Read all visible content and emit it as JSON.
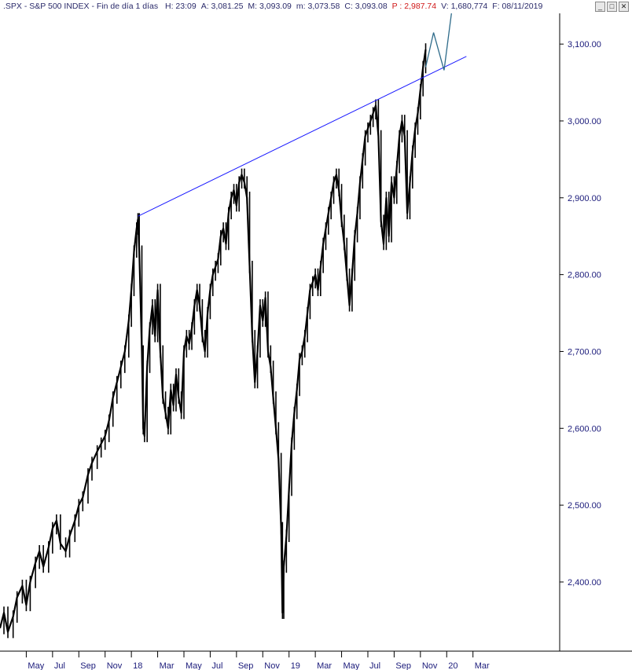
{
  "header": {
    "symbol": ".SPX - S&P 500 INDEX - Fin de día 1 días",
    "fields": [
      {
        "label": "H:",
        "value": "23:09"
      },
      {
        "label": "A:",
        "value": "3,081.25"
      },
      {
        "label": "M:",
        "value": "3,093.09"
      },
      {
        "label": "m:",
        "value": "3,073.58"
      },
      {
        "label": "C:",
        "value": "3,093.08"
      },
      {
        "label": "P :",
        "value": "2,987.74",
        "color": "#d01818"
      },
      {
        "label": "V:",
        "value": "1,680,774"
      },
      {
        "label": "F:",
        "value": "08/11/2019"
      }
    ],
    "buttons": [
      "_",
      "□",
      "✕"
    ]
  },
  "colors": {
    "price": "#000000",
    "trendline": "#1a1aff",
    "projection": "#2e6b8a",
    "axis_text": "#1a1a7a"
  },
  "chart_data": {
    "type": "line",
    "ylim": [
      2310,
      3140
    ],
    "yticks": [
      2400,
      2500,
      2600,
      2700,
      2800,
      2900,
      3000,
      3100
    ],
    "ytick_labels": [
      "2,400.00",
      "2,500.00",
      "2,600.00",
      "2,700.00",
      "2,800.00",
      "2,900.00",
      "3,000.00",
      "3,100.00"
    ],
    "xlim": [
      0,
      42.6
    ],
    "xticks": [
      {
        "label": "May",
        "x": 2
      },
      {
        "label": "Jul",
        "x": 4
      },
      {
        "label": "Sep",
        "x": 6
      },
      {
        "label": "Nov",
        "x": 8
      },
      {
        "label": "18",
        "x": 10
      },
      {
        "label": "Mar",
        "x": 12
      },
      {
        "label": "May",
        "x": 14
      },
      {
        "label": "Jul",
        "x": 16
      },
      {
        "label": "Sep",
        "x": 18
      },
      {
        "label": "Nov",
        "x": 20
      },
      {
        "label": "19",
        "x": 22
      },
      {
        "label": "Mar",
        "x": 24
      },
      {
        "label": "May",
        "x": 26
      },
      {
        "label": "Jul",
        "x": 28
      },
      {
        "label": "Sep",
        "x": 30
      },
      {
        "label": "Nov",
        "x": 32
      },
      {
        "label": "20",
        "x": 34
      },
      {
        "label": "Mar",
        "x": 36
      }
    ],
    "series": [
      {
        "points": [
          [
            0.0,
            2340
          ],
          [
            0.3,
            2360
          ],
          [
            0.6,
            2335
          ],
          [
            1.0,
            2355
          ],
          [
            1.3,
            2380
          ],
          [
            1.7,
            2395
          ],
          [
            2.0,
            2370
          ],
          [
            2.3,
            2400
          ],
          [
            2.7,
            2425
          ],
          [
            3.0,
            2440
          ],
          [
            3.3,
            2420
          ],
          [
            3.7,
            2445
          ],
          [
            4.0,
            2470
          ],
          [
            4.3,
            2480
          ],
          [
            4.6,
            2450
          ],
          [
            5.0,
            2440
          ],
          [
            5.3,
            2460
          ],
          [
            5.7,
            2480
          ],
          [
            6.0,
            2500
          ],
          [
            6.3,
            2510
          ],
          [
            6.7,
            2540
          ],
          [
            7.0,
            2555
          ],
          [
            7.4,
            2570
          ],
          [
            7.7,
            2580
          ],
          [
            8.0,
            2590
          ],
          [
            8.3,
            2610
          ],
          [
            8.6,
            2640
          ],
          [
            8.9,
            2660
          ],
          [
            9.2,
            2680
          ],
          [
            9.5,
            2700
          ],
          [
            9.8,
            2740
          ],
          [
            10.0,
            2780
          ],
          [
            10.2,
            2830
          ],
          [
            10.4,
            2860
          ],
          [
            10.5,
            2872
          ],
          [
            10.6,
            2830
          ],
          [
            10.8,
            2700
          ],
          [
            10.9,
            2600
          ],
          [
            11.0,
            2590
          ],
          [
            11.2,
            2680
          ],
          [
            11.4,
            2730
          ],
          [
            11.6,
            2760
          ],
          [
            11.8,
            2720
          ],
          [
            12.0,
            2780
          ],
          [
            12.2,
            2700
          ],
          [
            12.4,
            2640
          ],
          [
            12.6,
            2620
          ],
          [
            12.8,
            2600
          ],
          [
            13.0,
            2650
          ],
          [
            13.2,
            2630
          ],
          [
            13.4,
            2670
          ],
          [
            13.6,
            2640
          ],
          [
            13.8,
            2620
          ],
          [
            14.0,
            2700
          ],
          [
            14.2,
            2720
          ],
          [
            14.4,
            2710
          ],
          [
            14.6,
            2730
          ],
          [
            14.8,
            2760
          ],
          [
            15.0,
            2780
          ],
          [
            15.2,
            2760
          ],
          [
            15.4,
            2720
          ],
          [
            15.6,
            2700
          ],
          [
            15.8,
            2750
          ],
          [
            16.0,
            2780
          ],
          [
            16.2,
            2800
          ],
          [
            16.4,
            2810
          ],
          [
            16.6,
            2820
          ],
          [
            16.8,
            2850
          ],
          [
            17.0,
            2860
          ],
          [
            17.2,
            2840
          ],
          [
            17.4,
            2880
          ],
          [
            17.6,
            2900
          ],
          [
            17.8,
            2910
          ],
          [
            18.0,
            2890
          ],
          [
            18.2,
            2920
          ],
          [
            18.4,
            2930
          ],
          [
            18.6,
            2920
          ],
          [
            18.8,
            2900
          ],
          [
            19.0,
            2810
          ],
          [
            19.2,
            2720
          ],
          [
            19.4,
            2660
          ],
          [
            19.6,
            2700
          ],
          [
            19.8,
            2760
          ],
          [
            20.0,
            2740
          ],
          [
            20.2,
            2770
          ],
          [
            20.4,
            2700
          ],
          [
            20.6,
            2680
          ],
          [
            20.8,
            2640
          ],
          [
            21.0,
            2600
          ],
          [
            21.2,
            2560
          ],
          [
            21.4,
            2470
          ],
          [
            21.5,
            2360
          ],
          [
            21.6,
            2420
          ],
          [
            21.8,
            2460
          ],
          [
            22.0,
            2520
          ],
          [
            22.2,
            2580
          ],
          [
            22.4,
            2620
          ],
          [
            22.6,
            2650
          ],
          [
            22.8,
            2690
          ],
          [
            23.0,
            2700
          ],
          [
            23.2,
            2720
          ],
          [
            23.4,
            2750
          ],
          [
            23.6,
            2780
          ],
          [
            23.8,
            2790
          ],
          [
            24.0,
            2800
          ],
          [
            24.2,
            2780
          ],
          [
            24.4,
            2810
          ],
          [
            24.6,
            2840
          ],
          [
            24.8,
            2860
          ],
          [
            25.0,
            2880
          ],
          [
            25.2,
            2900
          ],
          [
            25.4,
            2920
          ],
          [
            25.6,
            2930
          ],
          [
            25.8,
            2910
          ],
          [
            26.0,
            2870
          ],
          [
            26.2,
            2840
          ],
          [
            26.4,
            2800
          ],
          [
            26.6,
            2760
          ],
          [
            26.8,
            2800
          ],
          [
            27.0,
            2850
          ],
          [
            27.2,
            2880
          ],
          [
            27.4,
            2920
          ],
          [
            27.6,
            2950
          ],
          [
            27.8,
            2980
          ],
          [
            28.0,
            2990
          ],
          [
            28.2,
            3000
          ],
          [
            28.4,
            3010
          ],
          [
            28.6,
            3020
          ],
          [
            28.8,
            2980
          ],
          [
            29.0,
            2870
          ],
          [
            29.2,
            2840
          ],
          [
            29.4,
            2900
          ],
          [
            29.6,
            2850
          ],
          [
            29.8,
            2920
          ],
          [
            30.0,
            2900
          ],
          [
            30.2,
            2940
          ],
          [
            30.4,
            2980
          ],
          [
            30.6,
            3000
          ],
          [
            30.8,
            2980
          ],
          [
            31.0,
            2880
          ],
          [
            31.2,
            2920
          ],
          [
            31.4,
            2960
          ],
          [
            31.6,
            2990
          ],
          [
            31.8,
            3010
          ],
          [
            32.0,
            3040
          ],
          [
            32.2,
            3070
          ],
          [
            32.4,
            3093
          ]
        ]
      }
    ],
    "trendline": {
      "x1": 10.5,
      "y1": 2876,
      "x2": 35.5,
      "y2": 3084
    },
    "projection": [
      [
        32.4,
        3070
      ],
      [
        33.0,
        3115
      ],
      [
        33.8,
        3066
      ],
      [
        34.4,
        3145
      ]
    ]
  }
}
